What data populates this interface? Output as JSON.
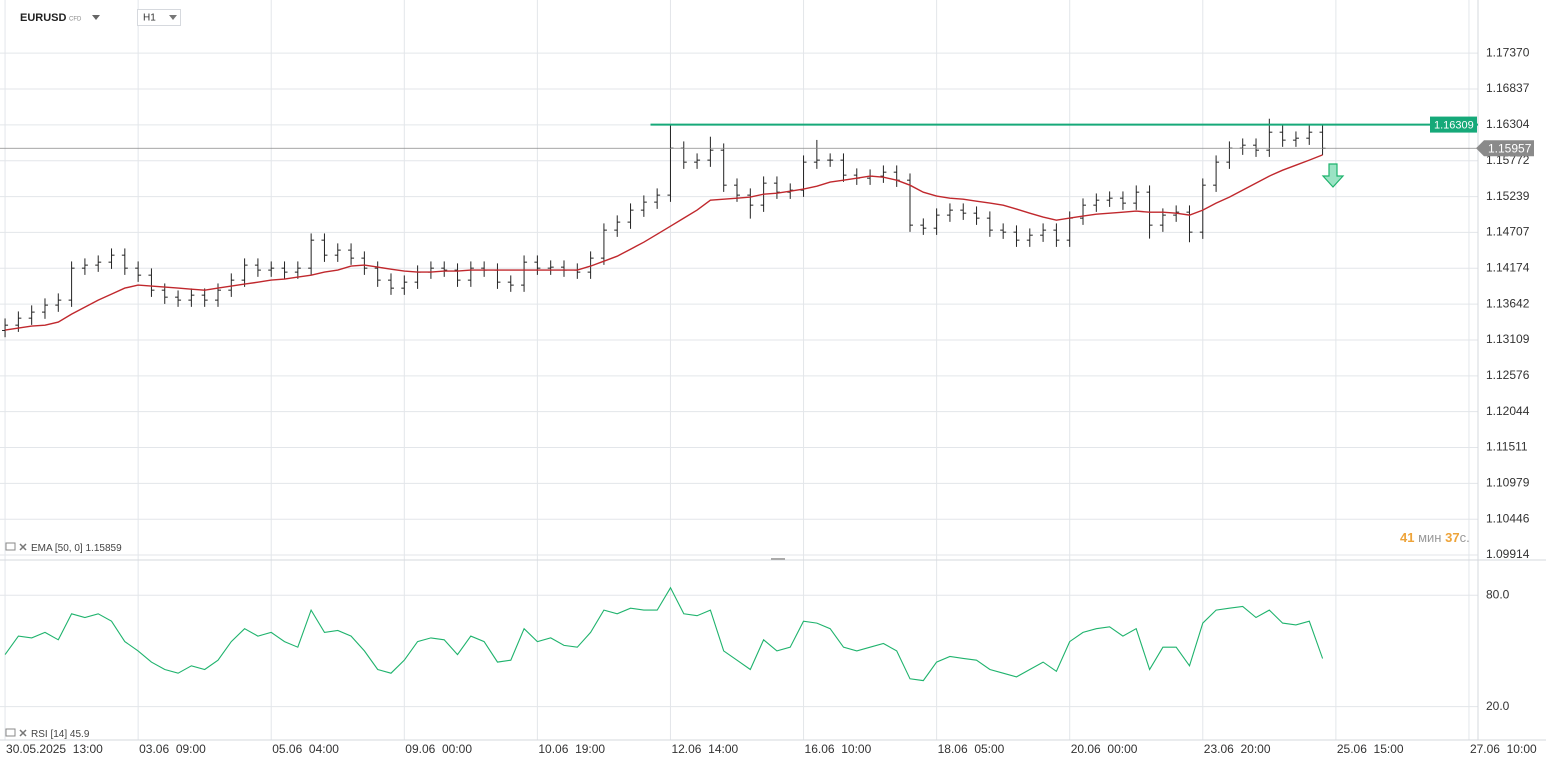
{
  "header": {
    "symbol": "EURUSD",
    "badge": "CFD",
    "timeframe": "H1"
  },
  "timer": {
    "minutes": "41",
    "min_unit": "мин",
    "seconds": "37",
    "sec_unit": "с."
  },
  "chart_data": [
    {
      "type": "ohlc",
      "color": "#222222",
      "grid": true,
      "xlim": [
        -0.38,
        110.68
      ],
      "ylim": [
        1.0984,
        1.1816
      ],
      "xticks": [
        {
          "value": 0,
          "label": "30.05.2025  13:00"
        },
        {
          "value": 10,
          "label": "03.06  09:00"
        },
        {
          "value": 20,
          "label": "05.06  04:00"
        },
        {
          "value": 30,
          "label": "09.06  00:00"
        },
        {
          "value": 40,
          "label": "10.06  19:00"
        },
        {
          "value": 50,
          "label": "12.06  14:00"
        },
        {
          "value": 60,
          "label": "16.06  10:00"
        },
        {
          "value": 70,
          "label": "18.06  05:00"
        },
        {
          "value": 80,
          "label": "20.06  00:00"
        },
        {
          "value": 90,
          "label": "23.06  20:00"
        },
        {
          "value": 100,
          "label": "25.06  15:00"
        },
        {
          "value": 110,
          "label": "27.06  10:00"
        }
      ],
      "yticks": [
        {
          "value": 1.1737,
          "label": "1.17370"
        },
        1.16837,
        1.16304,
        1.15772,
        1.15239,
        1.14707,
        1.14174,
        1.13642,
        1.13109,
        1.12576,
        1.12044,
        1.11511,
        1.10979,
        1.10446,
        1.09914
      ],
      "open": [
        1.1325,
        1.13329,
        1.13433,
        1.13523,
        1.13627,
        1.13701,
        1.14176,
        1.14221,
        1.14265,
        1.14369,
        1.14176,
        1.14072,
        1.13849,
        1.13745,
        1.13701,
        1.13775,
        1.13701,
        1.13849,
        1.13998,
        1.14221,
        1.14147,
        1.14176,
        1.14117,
        1.14176,
        1.14592,
        1.14369,
        1.14444,
        1.14325,
        1.14176,
        1.13998,
        1.13879,
        1.13968,
        1.14117,
        1.14176,
        1.14147,
        1.13998,
        1.14176,
        1.14147,
        1.13968,
        1.13924,
        1.14265,
        1.14176,
        1.14191,
        1.14147,
        1.14117,
        1.14325,
        1.14741,
        1.1486,
        1.15038,
        1.15157,
        1.15261,
        1.15959,
        1.15751,
        1.15781,
        1.15929,
        1.15409,
        1.15261,
        1.15112,
        1.15439,
        1.15305,
        1.15335,
        1.15751,
        1.15781,
        1.15781,
        1.15558,
        1.15513,
        1.15543,
        1.15602,
        1.15483,
        1.14815,
        1.1477,
        1.14964,
        1.15038,
        1.14993,
        1.14919,
        1.14741,
        1.14711,
        1.14592,
        1.14666,
        1.14741,
        1.14592,
        1.14919,
        1.15112,
        1.15186,
        1.15216,
        1.15142,
        1.15305,
        1.14815,
        1.14964,
        1.15008,
        1.14711,
        1.15409,
        1.15751,
        1.15959,
        1.16003,
        1.15929,
        1.16196,
        1.16078,
        1.16107,
        1.16196
      ],
      "high": [
        1.13429,
        1.13533,
        1.13623,
        1.13727,
        1.13801,
        1.14276,
        1.14321,
        1.14365,
        1.14469,
        1.14469,
        1.14276,
        1.14172,
        1.13949,
        1.13845,
        1.13875,
        1.13875,
        1.13949,
        1.14098,
        1.14321,
        1.14321,
        1.14276,
        1.14276,
        1.14276,
        1.14692,
        1.14692,
        1.14544,
        1.14544,
        1.14425,
        1.14276,
        1.14098,
        1.14068,
        1.14217,
        1.14276,
        1.14276,
        1.14247,
        1.14276,
        1.14276,
        1.14247,
        1.14068,
        1.14365,
        1.14365,
        1.14291,
        1.14291,
        1.14247,
        1.14425,
        1.14841,
        1.1496,
        1.15138,
        1.15257,
        1.15361,
        1.16304,
        1.16059,
        1.15881,
        1.16129,
        1.16029,
        1.15509,
        1.15361,
        1.15539,
        1.15539,
        1.15435,
        1.15851,
        1.16081,
        1.15881,
        1.15881,
        1.15658,
        1.15643,
        1.15702,
        1.15702,
        1.15583,
        1.14915,
        1.15064,
        1.15138,
        1.15138,
        1.15093,
        1.15019,
        1.14841,
        1.14811,
        1.14766,
        1.14841,
        1.14841,
        1.15019,
        1.15212,
        1.15286,
        1.15316,
        1.15316,
        1.15405,
        1.15405,
        1.15064,
        1.15108,
        1.15108,
        1.15509,
        1.15851,
        1.16059,
        1.16103,
        1.16103,
        1.16396,
        1.16296,
        1.16207,
        1.16296,
        1.16296
      ],
      "low": [
        1.1315,
        1.13229,
        1.13333,
        1.13423,
        1.13527,
        1.13601,
        1.14076,
        1.14121,
        1.14165,
        1.14076,
        1.13972,
        1.13749,
        1.13645,
        1.13601,
        1.13601,
        1.13601,
        1.13601,
        1.13749,
        1.13898,
        1.14047,
        1.14047,
        1.14017,
        1.14017,
        1.14076,
        1.14269,
        1.14269,
        1.14225,
        1.14076,
        1.13898,
        1.13779,
        1.13779,
        1.13868,
        1.14017,
        1.14047,
        1.13898,
        1.13898,
        1.14047,
        1.13868,
        1.13824,
        1.13824,
        1.14076,
        1.14076,
        1.14047,
        1.14017,
        1.14017,
        1.14225,
        1.14641,
        1.1476,
        1.14938,
        1.15057,
        1.15161,
        1.15651,
        1.15651,
        1.15681,
        1.15309,
        1.15161,
        1.14912,
        1.15012,
        1.15205,
        1.15205,
        1.15235,
        1.15651,
        1.15681,
        1.15458,
        1.15413,
        1.15413,
        1.15443,
        1.15383,
        1.14715,
        1.1467,
        1.1467,
        1.14864,
        1.14893,
        1.14819,
        1.14641,
        1.14611,
        1.14492,
        1.14492,
        1.14566,
        1.14492,
        1.14492,
        1.14819,
        1.15012,
        1.15086,
        1.15042,
        1.15042,
        1.14615,
        1.14715,
        1.14864,
        1.14561,
        1.14611,
        1.15309,
        1.15651,
        1.15859,
        1.15829,
        1.15829,
        1.15978,
        1.15978,
        1.16007,
        1.15857
      ],
      "close": [
        1.13329,
        1.13433,
        1.13523,
        1.13627,
        1.13701,
        1.14176,
        1.14221,
        1.14265,
        1.14369,
        1.14176,
        1.14072,
        1.13849,
        1.13745,
        1.13701,
        1.13775,
        1.13701,
        1.13849,
        1.13998,
        1.14221,
        1.14147,
        1.14176,
        1.14117,
        1.14176,
        1.14592,
        1.14369,
        1.14444,
        1.14325,
        1.14176,
        1.13998,
        1.13879,
        1.13968,
        1.14117,
        1.14176,
        1.14147,
        1.13998,
        1.14176,
        1.14147,
        1.13968,
        1.13924,
        1.14265,
        1.14176,
        1.14191,
        1.14147,
        1.14117,
        1.14325,
        1.14741,
        1.1486,
        1.15038,
        1.15157,
        1.15261,
        1.15959,
        1.15751,
        1.15781,
        1.15929,
        1.15409,
        1.15261,
        1.15112,
        1.15439,
        1.15305,
        1.15335,
        1.15751,
        1.15781,
        1.15781,
        1.15558,
        1.15513,
        1.15543,
        1.15602,
        1.15483,
        1.14815,
        1.1477,
        1.14964,
        1.15038,
        1.14993,
        1.14919,
        1.14741,
        1.14711,
        1.14592,
        1.14666,
        1.14741,
        1.14592,
        1.14919,
        1.15112,
        1.15186,
        1.15216,
        1.15142,
        1.15305,
        1.14815,
        1.14964,
        1.15008,
        1.14711,
        1.15409,
        1.15751,
        1.15959,
        1.16003,
        1.15929,
        1.16196,
        1.16078,
        1.16107,
        1.16196,
        1.15957
      ],
      "series": [
        {
          "name": "EMA [50, 0]",
          "color": "#c0282d",
          "values": [
            1.13255,
            1.13285,
            1.13315,
            1.13329,
            1.13374,
            1.13493,
            1.13597,
            1.13701,
            1.1379,
            1.13879,
            1.13924,
            1.13909,
            1.13894,
            1.13879,
            1.13864,
            1.13849,
            1.13879,
            1.13909,
            1.13939,
            1.13968,
            1.13998,
            1.14013,
            1.14043,
            1.14072,
            1.14117,
            1.14147,
            1.14206,
            1.14221,
            1.14191,
            1.14161,
            1.14132,
            1.14117,
            1.14117,
            1.14132,
            1.14132,
            1.14147,
            1.14147,
            1.14147,
            1.14147,
            1.14147,
            1.14147,
            1.14147,
            1.14147,
            1.14147,
            1.14206,
            1.1428,
            1.14354,
            1.14458,
            1.14562,
            1.14681,
            1.148,
            1.14919,
            1.15038,
            1.15186,
            1.15201,
            1.15216,
            1.15231,
            1.15275,
            1.1529,
            1.1532,
            1.1535,
            1.15394,
            1.15454,
            1.15483,
            1.15513,
            1.15543,
            1.15528,
            1.15483,
            1.15409,
            1.15305,
            1.15246,
            1.15216,
            1.15201,
            1.15171,
            1.15142,
            1.15112,
            1.15053,
            1.14993,
            1.14934,
            1.14889,
            1.14919,
            1.14949,
            1.14978,
            1.14993,
            1.15008,
            1.15023,
            1.15008,
            1.15008,
            1.14993,
            1.14964,
            1.15038,
            1.15142,
            1.15231,
            1.15335,
            1.15439,
            1.15543,
            1.15632,
            1.15706,
            1.15781,
            1.15859
          ]
        }
      ],
      "resistance": {
        "value": 1.16309,
        "x_start": 48.5,
        "color": "#16a979"
      },
      "last_price": 1.15957
    },
    {
      "type": "line",
      "xlim": [
        -0.38,
        110.68
      ],
      "ylim": [
        2,
        99
      ],
      "grid": true,
      "yticks": [
        {
          "value": 80,
          "label": "80.0"
        },
        {
          "value": 20,
          "label": "20.0"
        }
      ],
      "series": [
        {
          "name": "RSI [14]",
          "color": "#1fb36d",
          "values": [
            48,
            58,
            57,
            60,
            56,
            70,
            68,
            70,
            66,
            55,
            50,
            44,
            40,
            38,
            42,
            40,
            45,
            55,
            62,
            58,
            60,
            55,
            52,
            72,
            60,
            61,
            58,
            50,
            40,
            38,
            45,
            55,
            57,
            56,
            48,
            58,
            55,
            44,
            45,
            62,
            55,
            57,
            53,
            52,
            60,
            72,
            70,
            73,
            72,
            72,
            84,
            70,
            69,
            72,
            50,
            45,
            40,
            56,
            50,
            52,
            66,
            65,
            62,
            52,
            50,
            52,
            54,
            50,
            35,
            34,
            44,
            47,
            46,
            45,
            40,
            38,
            36,
            40,
            44,
            39,
            55,
            60,
            62,
            63,
            58,
            62,
            40,
            52,
            52,
            42,
            65,
            72,
            73,
            74,
            68,
            72,
            65,
            64,
            66,
            45.9
          ]
        }
      ]
    }
  ]
}
